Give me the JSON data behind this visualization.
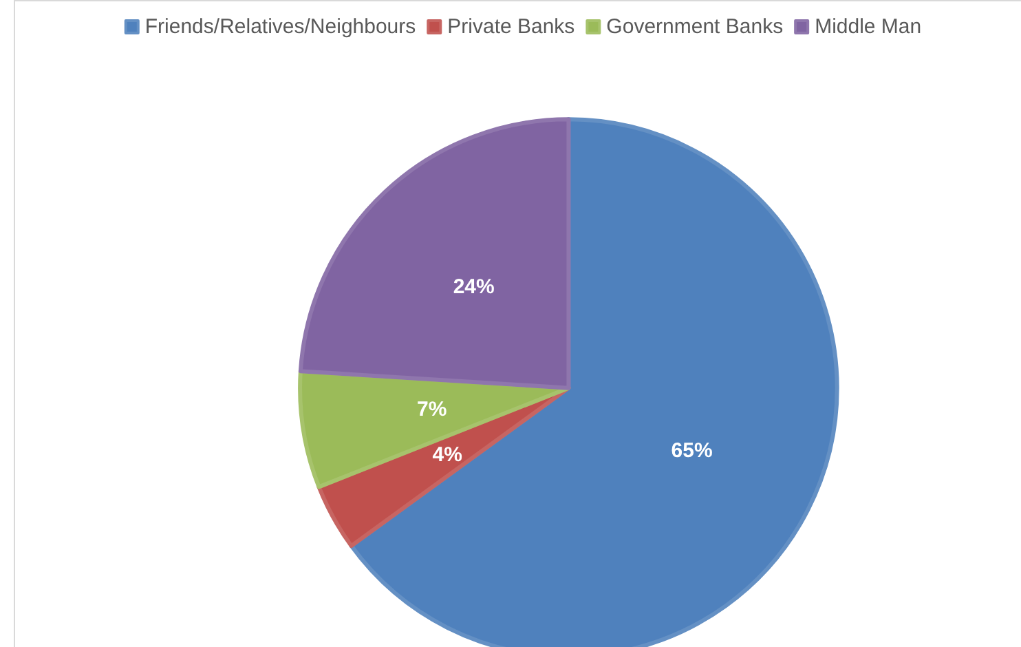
{
  "chart_data": {
    "type": "pie",
    "categories": [
      "Friends/Relatives/Neighbours",
      "Private Banks",
      "Government Banks",
      "Middle Man"
    ],
    "values": [
      65,
      4,
      7,
      24
    ],
    "colors": [
      "#4f81bd",
      "#c0504d",
      "#9bbb59",
      "#8064a2"
    ],
    "value_labels": [
      "65%",
      "4%",
      "7%",
      "24%"
    ],
    "legend": "top"
  }
}
